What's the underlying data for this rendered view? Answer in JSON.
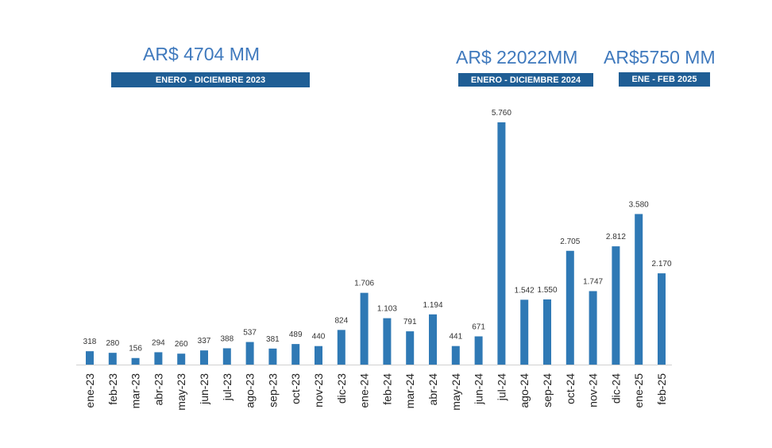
{
  "summaries": [
    {
      "amount": "AR$ 4704 MM",
      "period": "ENERO - DICIEMBRE 2023"
    },
    {
      "amount": "AR$ 22022MM",
      "period": "ENERO - DICIEMBRE 2024"
    },
    {
      "amount": "AR$5750 MM",
      "period": "ENE - FEB 2025"
    }
  ],
  "colors": {
    "bar": "#2f79b5",
    "headline": "#3f79bd",
    "band": "#1f5e95"
  },
  "chart_data": {
    "type": "bar",
    "categories": [
      "ene-23",
      "feb-23",
      "mar-23",
      "abr-23",
      "may-23",
      "jun-23",
      "jul-23",
      "ago-23",
      "sep-23",
      "oct-23",
      "nov-23",
      "dic-23",
      "ene-24",
      "feb-24",
      "mar-24",
      "abr-24",
      "may-24",
      "jun-24",
      "jul-24",
      "ago-24",
      "sep-24",
      "oct-24",
      "nov-24",
      "dic-24",
      "ene-25",
      "feb-25"
    ],
    "values": [
      318,
      280,
      156,
      294,
      260,
      337,
      388,
      537,
      381,
      489,
      440,
      824,
      1706,
      1103,
      791,
      1194,
      441,
      671,
      5760,
      1542,
      1550,
      2705,
      1747,
      2812,
      3580,
      2170
    ],
    "labels": [
      "318",
      "280",
      "156",
      "294",
      "260",
      "337",
      "388",
      "537",
      "381",
      "489",
      "440",
      "824",
      "1.706",
      "1.103",
      "791",
      "1.194",
      "441",
      "671",
      "5.760",
      "1.542",
      "1.550",
      "2.705",
      "1.747",
      "2.812",
      "3.580",
      "2.170"
    ],
    "title": "",
    "xlabel": "",
    "ylabel": "",
    "ylim": [
      0,
      5760
    ],
    "grid": false,
    "legend": "none"
  }
}
